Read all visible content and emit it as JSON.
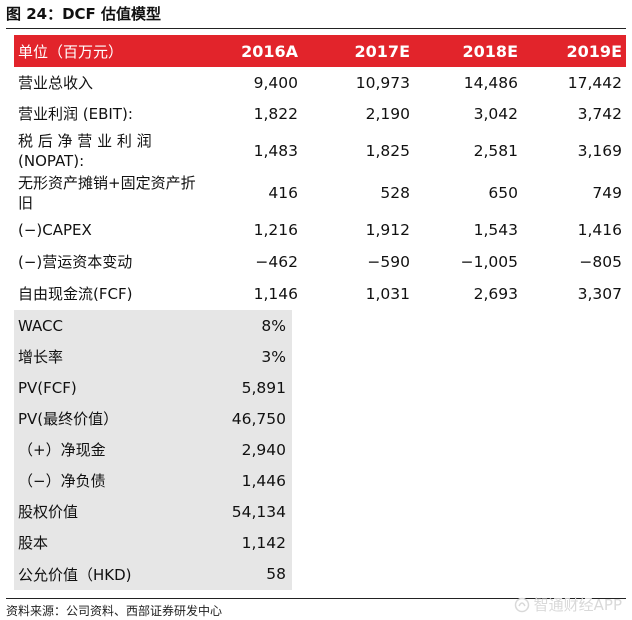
{
  "figure_title": "图 24：DCF 估值模型",
  "header": {
    "label": "单位（百万元）",
    "years": [
      "2016A",
      "2017E",
      "2018E",
      "2019E"
    ]
  },
  "rows": [
    {
      "label": "营业总收入",
      "values": [
        "9,400",
        "10,973",
        "14,486",
        "17,442"
      ]
    },
    {
      "label": "营业利润 (EBIT):",
      "values": [
        "1,822",
        "2,190",
        "3,042",
        "3,742"
      ]
    },
    {
      "label": "税 后 净 营 业 利 润 (NOPAT):",
      "values": [
        "1,483",
        "1,825",
        "2,581",
        "3,169"
      ]
    },
    {
      "label": "无形资产摊销+固定资产折旧",
      "values": [
        "416",
        "528",
        "650",
        "749"
      ]
    },
    {
      "label": "(−)CAPEX",
      "values": [
        "1,216",
        "1,912",
        "1,543",
        "1,416"
      ]
    },
    {
      "label": "(−)营运资本变动",
      "values": [
        "−462",
        "−590",
        "−1,005",
        "−805"
      ]
    },
    {
      "label": "自由现金流(FCF)",
      "values": [
        "1,146",
        "1,031",
        "2,693",
        "3,307"
      ]
    }
  ],
  "valuation": [
    {
      "label": "WACC",
      "value": "8%"
    },
    {
      "label": "增长率",
      "value": "3%"
    },
    {
      "label": "PV(FCF)",
      "value": "5,891"
    },
    {
      "label": "PV(最终价值）",
      "value": "46,750"
    },
    {
      "label": "（+）净现金",
      "value": "2,940"
    },
    {
      "label": "（−）净负债",
      "value": "1,446"
    },
    {
      "label": "股权价值",
      "value": "54,134"
    },
    {
      "label": "股本",
      "value": "1,142"
    },
    {
      "label": "公允价值（HKD)",
      "value": "58"
    }
  ],
  "source": "资料来源：公司资料、西部证券研发中心",
  "watermark": "智通财经APP",
  "colors": {
    "header_bg": "#e2242b",
    "block_bg": "#e6e6e6"
  }
}
